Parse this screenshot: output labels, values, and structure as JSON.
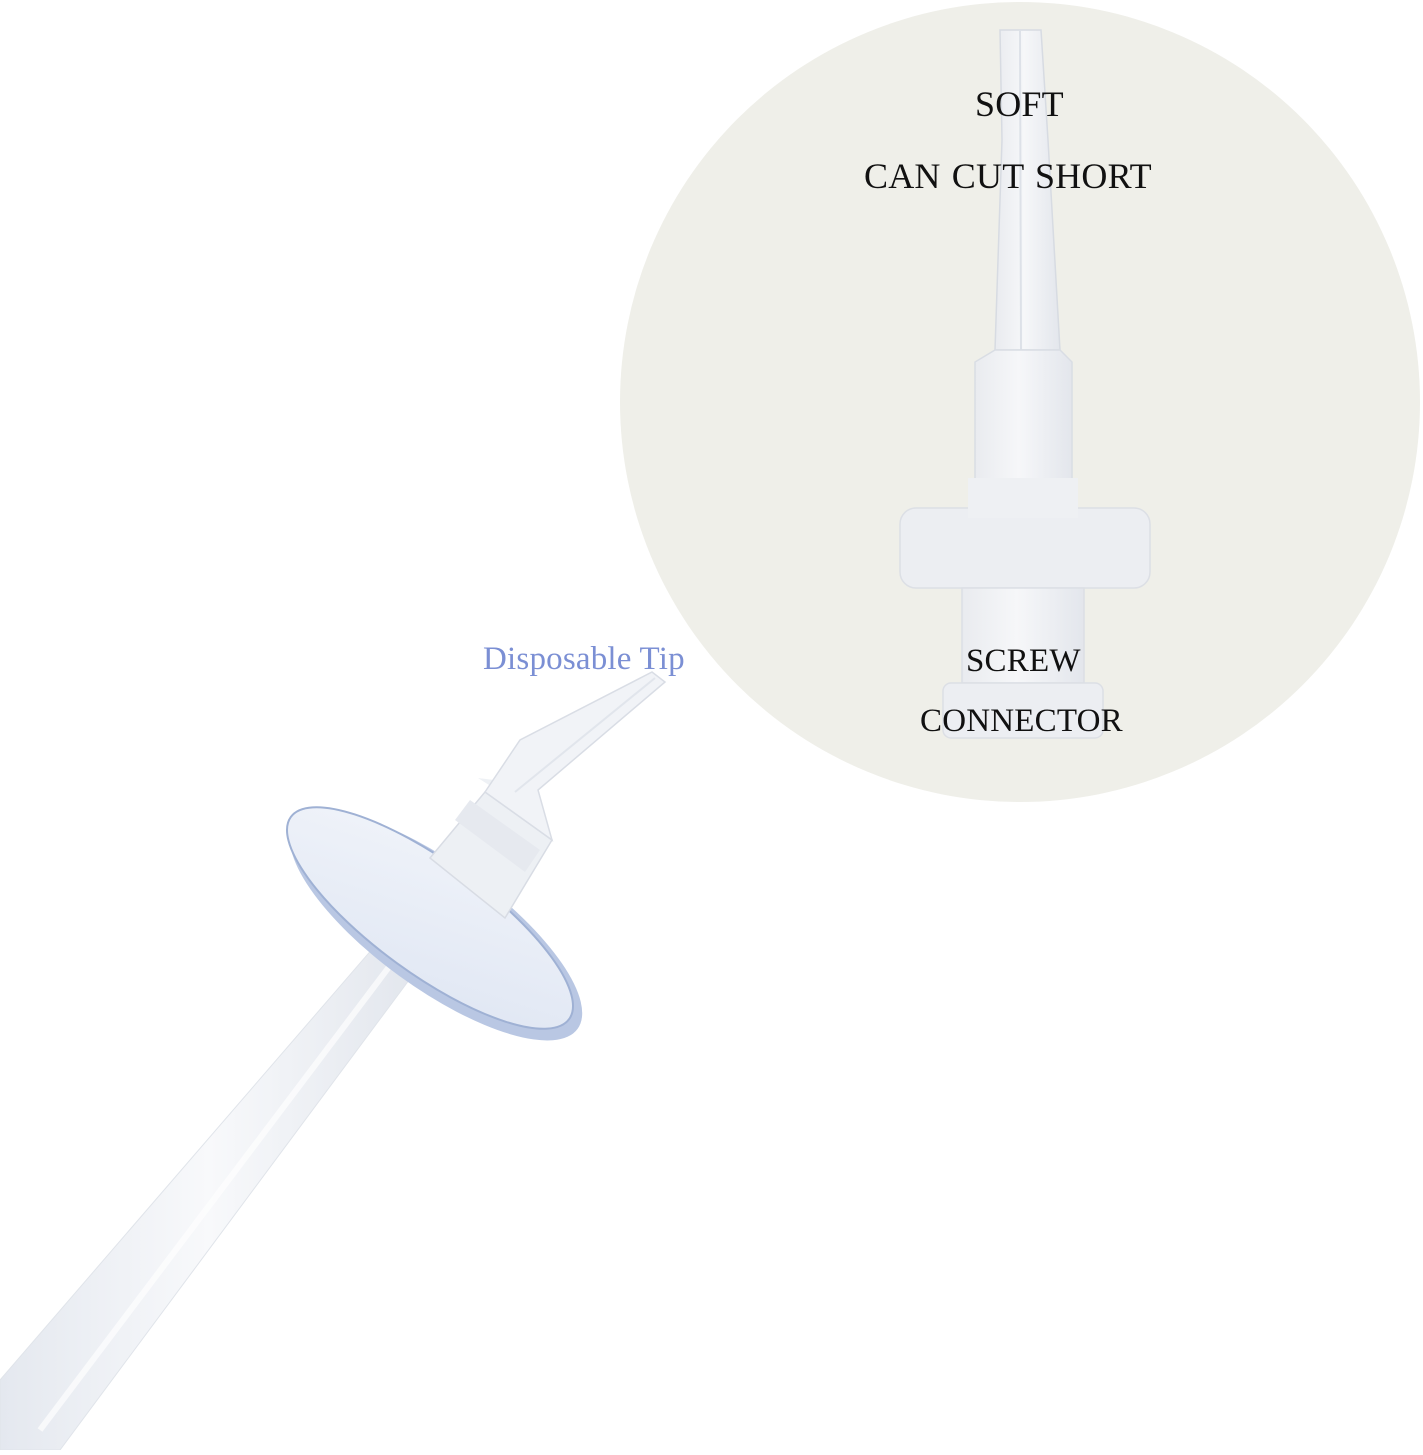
{
  "callout": {
    "line1": "SOFT",
    "line2": "CAN  CUT SHORT",
    "line3": "SCREW",
    "line4": "CONNECTOR"
  },
  "product": {
    "tip_label": "Disposable Tip"
  },
  "colors": {
    "page_background": "#ffffff",
    "callout_circle": "#efefe9",
    "tip_label_text": "#7b8fd4",
    "callout_text": "#111111",
    "plastic": "#eef1f6",
    "disc_edge": "#9fb1d4"
  }
}
